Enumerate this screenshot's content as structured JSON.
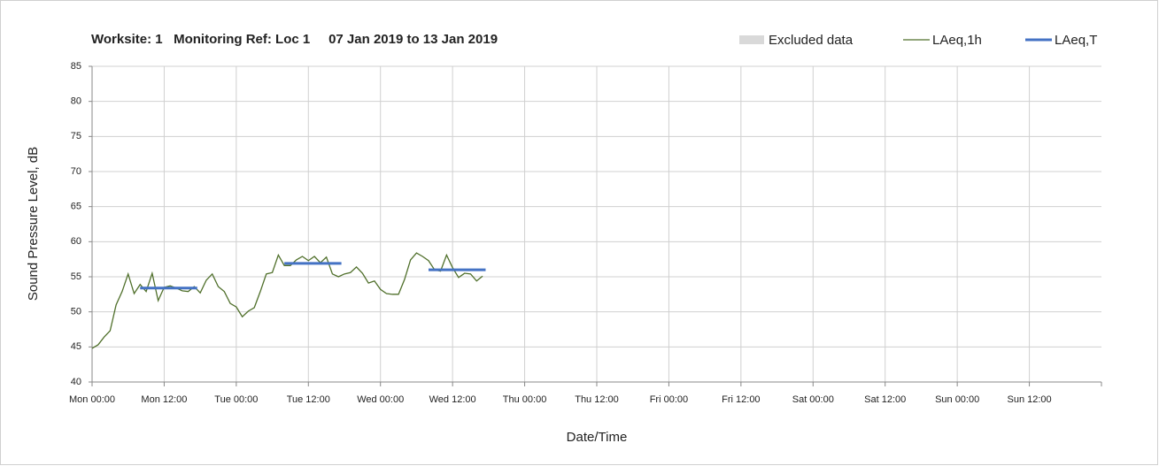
{
  "chart_data": {
    "type": "line",
    "title": "Worksite: 1   Monitoring Ref: Loc 1     07 Jan 2019 to 13 Jan 2019",
    "xlabel": "Date/Time",
    "ylabel": "Sound Pressure Level, dB",
    "xlim": [
      0,
      168
    ],
    "ylim": [
      40,
      85
    ],
    "yticks": [
      40,
      45,
      50,
      55,
      60,
      65,
      70,
      75,
      80,
      85
    ],
    "xticks": [
      {
        "value": 0,
        "label": "Mon 00:00"
      },
      {
        "value": 12,
        "label": "Mon 12:00"
      },
      {
        "value": 24,
        "label": "Tue 00:00"
      },
      {
        "value": 36,
        "label": "Tue 12:00"
      },
      {
        "value": 48,
        "label": "Wed 00:00"
      },
      {
        "value": 60,
        "label": "Wed 12:00"
      },
      {
        "value": 72,
        "label": "Thu 00:00"
      },
      {
        "value": 84,
        "label": "Thu 12:00"
      },
      {
        "value": 96,
        "label": "Fri 00:00"
      },
      {
        "value": 108,
        "label": "Fri 12:00"
      },
      {
        "value": 120,
        "label": "Sat 00:00"
      },
      {
        "value": 132,
        "label": "Sat 12:00"
      },
      {
        "value": 144,
        "label": "Sun 00:00"
      },
      {
        "value": 156,
        "label": "Sun 12:00"
      }
    ],
    "grid": true,
    "series": [
      {
        "name": "Excluded data",
        "color": "#d9d9d9",
        "x": [],
        "values": []
      },
      {
        "name": "LAeq,1h",
        "color": "#4f6f2a",
        "x": [
          0,
          1,
          2,
          3,
          4,
          5,
          6,
          7,
          8,
          9,
          10,
          11,
          12,
          13,
          14,
          15,
          16,
          17,
          18,
          19,
          20,
          21,
          22,
          23,
          24,
          25,
          26,
          27,
          28,
          29,
          30,
          31,
          32,
          33,
          34,
          35,
          36,
          37,
          38,
          39,
          40,
          41,
          42,
          43,
          44,
          45,
          46,
          47,
          48,
          49,
          50,
          51,
          52,
          53,
          54,
          55,
          56,
          57,
          58,
          59,
          60,
          61,
          62,
          63,
          64,
          65
        ],
        "values": [
          44.8,
          45.3,
          46.4,
          47.3,
          51.0,
          52.9,
          55.4,
          52.6,
          53.9,
          52.9,
          55.5,
          51.6,
          53.5,
          53.7,
          53.4,
          53.0,
          52.9,
          53.6,
          52.7,
          54.5,
          55.4,
          53.6,
          52.9,
          51.2,
          50.7,
          49.3,
          50.1,
          50.6,
          52.9,
          55.4,
          55.6,
          58.1,
          56.6,
          56.6,
          57.4,
          57.9,
          57.3,
          57.9,
          57.0,
          57.8,
          55.4,
          55.0,
          55.4,
          55.6,
          56.4,
          55.5,
          54.1,
          54.4,
          53.2,
          52.6,
          52.5,
          52.5,
          54.6,
          57.4,
          58.4,
          57.9,
          57.3,
          56.0,
          55.8,
          58.1,
          56.3,
          54.9,
          55.5,
          55.4,
          54.4,
          55.1
        ]
      },
      {
        "name": "LAeq,T",
        "color": "#4472c4",
        "x": [
          8,
          17.5,
          24,
          32,
          41.5,
          48,
          56,
          65.5
        ],
        "values": [
          53.4,
          53.4,
          null,
          56.9,
          56.9,
          null,
          56.0,
          56.0
        ]
      }
    ]
  }
}
